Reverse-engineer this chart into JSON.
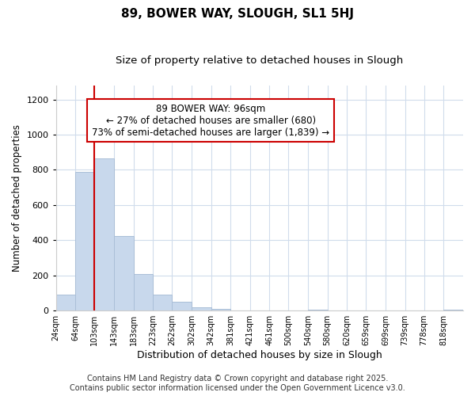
{
  "title1": "89, BOWER WAY, SLOUGH, SL1 5HJ",
  "title2": "Size of property relative to detached houses in Slough",
  "xlabel": "Distribution of detached houses by size in Slough",
  "ylabel": "Number of detached properties",
  "bar_color": "#c8d8ec",
  "bar_edge_color": "#aabfd8",
  "background_color": "#ffffff",
  "grid_color": "#d0dcec",
  "annotation_text": "89 BOWER WAY: 96sqm\n← 27% of detached houses are smaller (680)\n73% of semi-detached houses are larger (1,839) →",
  "vline_color": "#cc0000",
  "box_color": "#cc0000",
  "categories": [
    "24sqm",
    "64sqm",
    "103sqm",
    "143sqm",
    "183sqm",
    "223sqm",
    "262sqm",
    "302sqm",
    "342sqm",
    "381sqm",
    "421sqm",
    "461sqm",
    "500sqm",
    "540sqm",
    "580sqm",
    "620sqm",
    "659sqm",
    "699sqm",
    "739sqm",
    "778sqm",
    "818sqm"
  ],
  "bin_edges": [
    24,
    64,
    103,
    143,
    183,
    223,
    262,
    302,
    342,
    381,
    421,
    461,
    500,
    540,
    580,
    620,
    659,
    699,
    739,
    778,
    818,
    858
  ],
  "values": [
    90,
    790,
    865,
    425,
    210,
    90,
    50,
    20,
    10,
    0,
    0,
    0,
    0,
    5,
    0,
    0,
    0,
    0,
    0,
    0,
    5
  ],
  "vline_bin_edge": 103,
  "ylim": [
    0,
    1280
  ],
  "yticks": [
    0,
    200,
    400,
    600,
    800,
    1000,
    1200
  ],
  "footer": "Contains HM Land Registry data © Crown copyright and database right 2025.\nContains public sector information licensed under the Open Government Licence v3.0.",
  "title_fontsize": 11,
  "subtitle_fontsize": 9.5,
  "footer_fontsize": 7,
  "annotation_fontsize": 8.5
}
